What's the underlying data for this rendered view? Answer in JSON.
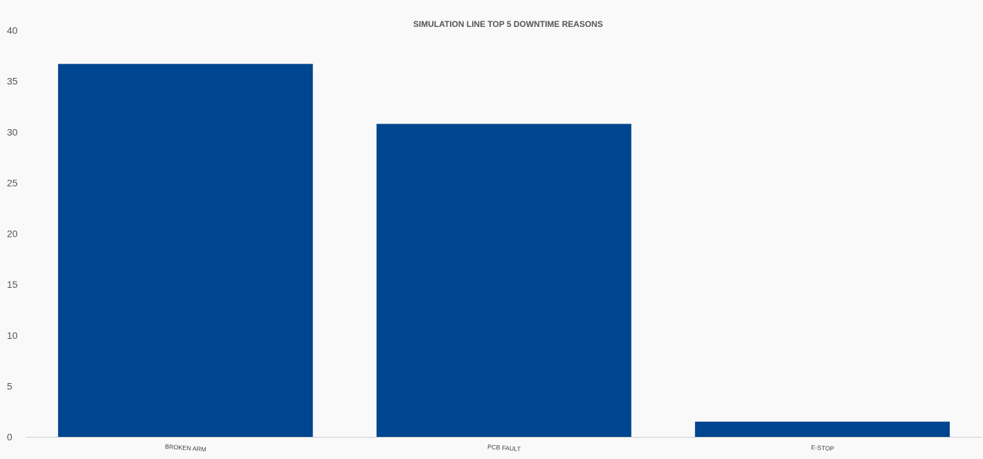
{
  "chart_data": {
    "type": "bar",
    "title": "SIMULATION LINE TOP 5 DOWNTIME REASONS",
    "xlabel": "",
    "ylabel": "",
    "categories": [
      "BROKEN ARM",
      "PCB FAULT",
      "E-STOP"
    ],
    "values": [
      36.7,
      30.8,
      1.5
    ],
    "ylim": [
      0,
      40
    ],
    "yticks": [
      0,
      5,
      10,
      15,
      20,
      25,
      30,
      35,
      40
    ],
    "grid": false,
    "legend": "none",
    "bar_color": "#00458f",
    "background_color": "#f9f9f9",
    "axis_color": "#cccccc"
  }
}
